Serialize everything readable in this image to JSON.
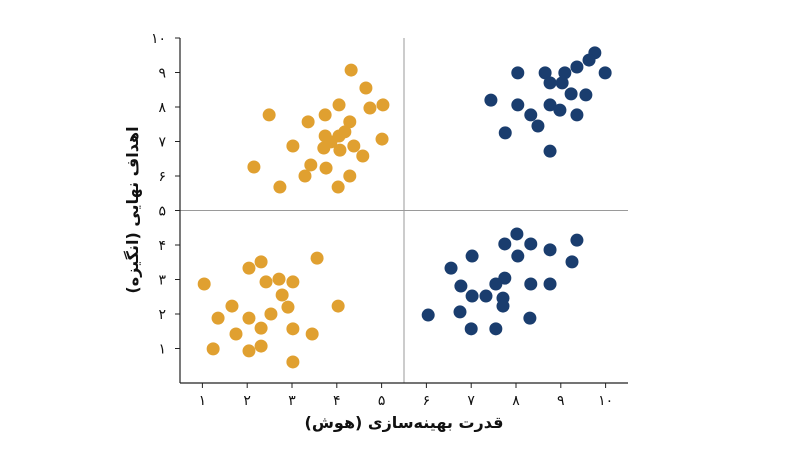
{
  "chart_data": {
    "type": "scatter",
    "x_label": "قدرت بهینه‌سازی (هوش)",
    "y_label": "اهداف نهایی (انگیزه)",
    "xlim": [
      0.5,
      10.5
    ],
    "ylim": [
      0,
      10
    ],
    "xticks": [
      {
        "value": 1,
        "label": "۱"
      },
      {
        "value": 2,
        "label": "۲"
      },
      {
        "value": 3,
        "label": "۳"
      },
      {
        "value": 4,
        "label": "۴"
      },
      {
        "value": 5,
        "label": "۵"
      },
      {
        "value": 6,
        "label": "۶"
      },
      {
        "value": 7,
        "label": "۷"
      },
      {
        "value": 8,
        "label": "۸"
      },
      {
        "value": 9,
        "label": "۹"
      },
      {
        "value": 10,
        "label": "۱۰"
      }
    ],
    "yticks": [
      {
        "value": 1,
        "label": "۱"
      },
      {
        "value": 2,
        "label": "۲"
      },
      {
        "value": 3,
        "label": "۳"
      },
      {
        "value": 4,
        "label": "۴"
      },
      {
        "value": 5,
        "label": "۵"
      },
      {
        "value": 6,
        "label": "۶"
      },
      {
        "value": 7,
        "label": "۷"
      },
      {
        "value": 8,
        "label": "۸"
      },
      {
        "value": 9,
        "label": "۹"
      },
      {
        "value": 10,
        "label": "۱۰"
      }
    ],
    "dividers": {
      "x": 5.5,
      "y": 5
    },
    "series": [
      {
        "color": "#e0a030",
        "x": [
          4.32,
          4.65,
          2.49,
          3.74,
          4.05,
          5.03,
          4.74,
          3.36,
          4.29,
          3.74,
          4.05,
          4.18,
          3.87,
          5.01,
          3.02,
          4.38,
          3.71,
          4.07,
          4.58,
          3.42,
          2.15,
          3.76,
          3.29,
          4.29,
          2.73,
          4.03
        ],
        "values": [
          9.07,
          8.55,
          7.77,
          7.77,
          8.06,
          8.06,
          7.97,
          7.57,
          7.57,
          7.16,
          7.16,
          7.28,
          6.99,
          7.07,
          6.87,
          6.87,
          6.81,
          6.75,
          6.58,
          6.32,
          6.26,
          6.23,
          6.0,
          6.0,
          5.68,
          5.68
        ]
      },
      {
        "color": "#e0a030",
        "x": [
          1.04,
          2.31,
          2.04,
          3.56,
          2.71,
          3.02,
          2.42,
          1.66,
          2.78,
          2.91,
          4.03,
          1.35,
          2.04,
          2.53,
          1.75,
          2.31,
          3.02,
          3.45,
          1.24,
          2.31,
          2.04,
          3.02
        ],
        "values": [
          2.87,
          3.51,
          3.33,
          3.62,
          3.01,
          2.93,
          2.93,
          2.23,
          2.55,
          2.2,
          2.23,
          1.88,
          1.88,
          2.0,
          1.42,
          1.59,
          1.57,
          1.42,
          0.99,
          1.07,
          0.93,
          0.61
        ]
      },
      {
        "color": "#1a3d6e",
        "x": [
          9.76,
          9.63,
          9.36,
          8.65,
          8.04,
          9.09,
          9.99,
          9.03,
          8.76,
          9.23,
          9.56,
          7.44,
          8.04,
          8.76,
          8.98,
          8.33,
          9.36,
          8.49,
          7.76,
          8.76
        ],
        "values": [
          9.57,
          9.36,
          9.16,
          8.99,
          8.99,
          8.99,
          8.99,
          8.7,
          8.7,
          8.38,
          8.35,
          8.2,
          8.06,
          8.06,
          7.91,
          7.77,
          7.77,
          7.45,
          7.25,
          6.72
        ]
      },
      {
        "color": "#1a3d6e",
        "x": [
          8.02,
          9.36,
          7.75,
          8.33,
          8.76,
          7.02,
          8.04,
          6.55,
          9.25,
          7.75,
          6.77,
          8.33,
          8.76,
          7.55,
          7.02,
          7.33,
          7.71,
          7.71,
          6.75,
          6.04,
          8.31,
          7.0,
          7.55
        ],
        "values": [
          4.32,
          4.14,
          4.03,
          4.03,
          3.86,
          3.68,
          3.68,
          3.33,
          3.51,
          3.04,
          2.81,
          2.87,
          2.87,
          2.87,
          2.52,
          2.52,
          2.46,
          2.23,
          2.06,
          1.97,
          1.88,
          1.57,
          1.57
        ]
      }
    ]
  }
}
